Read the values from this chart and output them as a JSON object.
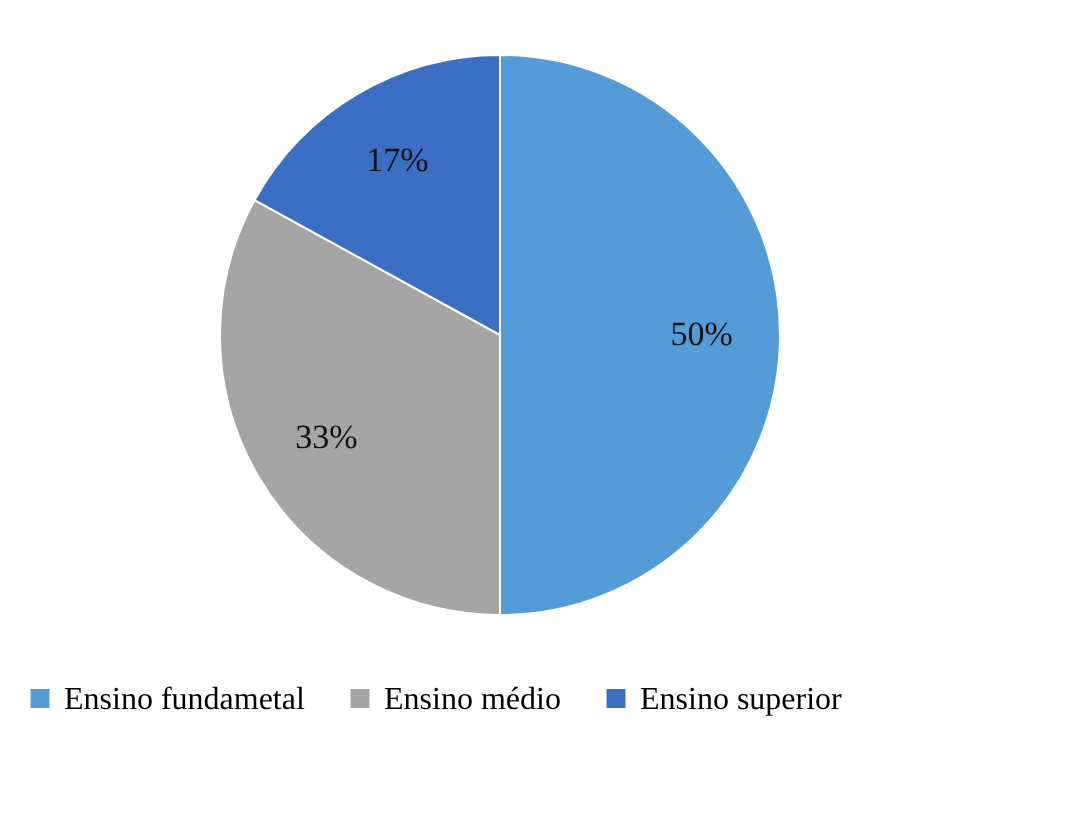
{
  "chart_data": {
    "type": "pie",
    "categories": [
      "Ensino fundametal",
      "Ensino médio",
      "Ensino superior"
    ],
    "values": [
      50,
      33,
      17
    ],
    "colors": [
      "#559bd8",
      "#a5a5a5",
      "#3a6fc4"
    ],
    "value_labels": [
      "50%",
      "33%",
      "17%"
    ],
    "legend": "bottom"
  }
}
